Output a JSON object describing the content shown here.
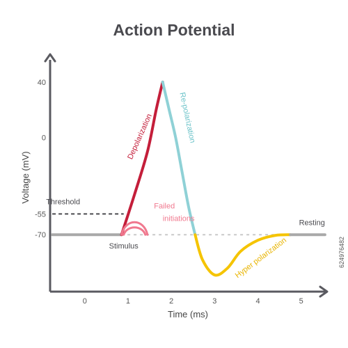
{
  "chart_data": {
    "type": "line",
    "title": "Action Potential",
    "xlabel": "Time (ms)",
    "ylabel": "Voltage (mV)",
    "xlim": [
      -0.8,
      5.6
    ],
    "ylim": [
      -111,
      60
    ],
    "x_ticks": [
      {
        "value": 0,
        "label": "0"
      },
      {
        "value": 1,
        "label": "1"
      },
      {
        "value": 2,
        "label": "2"
      },
      {
        "value": 3,
        "label": "3"
      },
      {
        "value": 4,
        "label": "4"
      },
      {
        "value": 5,
        "label": "5"
      }
    ],
    "y_ticks": [
      {
        "value": 40,
        "label": "40"
      },
      {
        "value": 0,
        "label": "0"
      },
      {
        "value": -55,
        "label": "-55"
      },
      {
        "value": -70,
        "label": "-70"
      }
    ],
    "grid": false,
    "reference_lines": [
      {
        "label": "Threshold",
        "y": -55,
        "x_range": [
          -0.75,
          0.9
        ],
        "style": "dashed",
        "color": "#4a4a4f"
      },
      {
        "label": "Resting",
        "y": -70,
        "x_range": [
          -0.75,
          5.55
        ],
        "style": "dotted",
        "color": "#c9c9c9"
      }
    ],
    "series": [
      {
        "name": "Resting",
        "color": "#a9a9a9",
        "points": [
          [
            -0.75,
            -70
          ],
          [
            0.85,
            -70
          ]
        ]
      },
      {
        "name": "Depolarization",
        "color": "#c41e3a",
        "points": [
          [
            0.85,
            -70
          ],
          [
            1.15,
            -41
          ],
          [
            1.45,
            -10
          ],
          [
            1.65,
            20
          ],
          [
            1.8,
            40
          ]
        ]
      },
      {
        "name": "Re-polarization",
        "color": "#8fd1d6",
        "points": [
          [
            1.8,
            40
          ],
          [
            1.95,
            20
          ],
          [
            2.1,
            0
          ],
          [
            2.25,
            -25
          ],
          [
            2.4,
            -50
          ],
          [
            2.55,
            -70
          ]
        ]
      },
      {
        "name": "Hyper polarization",
        "color": "#f5c400",
        "points": [
          [
            2.55,
            -70
          ],
          [
            2.72,
            -88
          ],
          [
            3.0,
            -99
          ],
          [
            3.3,
            -94
          ],
          [
            3.6,
            -82
          ],
          [
            4.0,
            -74
          ],
          [
            4.4,
            -70.5
          ],
          [
            4.75,
            -70
          ]
        ]
      },
      {
        "name": "Resting",
        "color": "#a9a9a9",
        "points": [
          [
            4.75,
            -70
          ],
          [
            5.55,
            -70
          ]
        ]
      }
    ],
    "failed_initiations": {
      "color": "#f0798f",
      "x_start": 0.85,
      "x_end": 1.45,
      "y": -70,
      "heights": [
        -58,
        -63
      ]
    },
    "annotations": [
      {
        "text": "Threshold",
        "x": -0.5,
        "y": -48,
        "color": "#4a4a4f",
        "rotation": 0
      },
      {
        "text": "Resting",
        "x": 5.25,
        "y": -63,
        "color": "#4a4a4f",
        "rotation": 0
      },
      {
        "text": "Stimulus",
        "x": 0.9,
        "y": -80,
        "color": "#4a4a4f",
        "rotation": 0
      },
      {
        "text": "Failed",
        "x": 1.6,
        "y": -51,
        "color": "#f0798f",
        "rotation": 0
      },
      {
        "text": "initiations",
        "x": 1.8,
        "y": -60,
        "color": "#f0798f",
        "rotation": 0
      },
      {
        "text": "Depolarization",
        "x": 1.32,
        "y": 0,
        "color": "#c41e3a",
        "rotation": -66
      },
      {
        "text": "Re-polarization",
        "x": 2.32,
        "y": 14,
        "color": "#6cc3c9",
        "rotation": 78
      },
      {
        "text": "Hyper polarization",
        "x": 4.1,
        "y": -88,
        "color": "#e8b400",
        "rotation": -37
      }
    ]
  },
  "watermark": "624976482"
}
